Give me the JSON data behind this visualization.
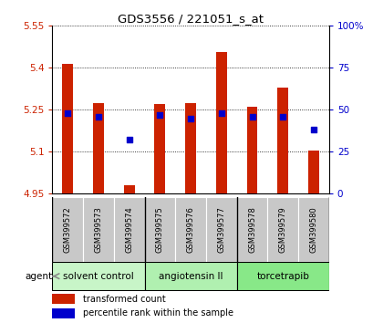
{
  "title": "GDS3556 / 221051_s_at",
  "samples": [
    "GSM399572",
    "GSM399573",
    "GSM399574",
    "GSM399575",
    "GSM399576",
    "GSM399577",
    "GSM399578",
    "GSM399579",
    "GSM399580"
  ],
  "bar_values": [
    5.415,
    5.275,
    4.98,
    5.27,
    5.275,
    5.455,
    5.26,
    5.33,
    5.105
  ],
  "bar_base": 4.95,
  "percentile_pct": [
    48,
    46,
    32,
    47,
    45,
    48,
    46,
    46,
    38
  ],
  "ylim_left": [
    4.95,
    5.55
  ],
  "ylim_right": [
    0,
    100
  ],
  "yticks_left": [
    4.95,
    5.1,
    5.25,
    5.4,
    5.55
  ],
  "yticks_right": [
    0,
    25,
    50,
    75,
    100
  ],
  "ytick_labels_left": [
    "4.95",
    "5.1",
    "5.25",
    "5.4",
    "5.55"
  ],
  "ytick_labels_right": [
    "0",
    "25",
    "50",
    "75",
    "100%"
  ],
  "groups": [
    {
      "label": "solvent control",
      "start": 0,
      "end": 3,
      "color": "#c8f5c8"
    },
    {
      "label": "angiotensin II",
      "start": 3,
      "end": 6,
      "color": "#b0f0b0"
    },
    {
      "label": "torcetrapib",
      "start": 6,
      "end": 9,
      "color": "#88e888"
    }
  ],
  "agent_label": "agent",
  "bar_color": "#cc2200",
  "dot_color": "#0000cc",
  "legend_bar_label": "transformed count",
  "legend_dot_label": "percentile rank within the sample",
  "background_plot": "#ffffff",
  "tick_color_left": "#cc2200",
  "tick_color_right": "#0000cc",
  "bar_width": 0.35,
  "dot_size": 18,
  "sample_area_color": "#c8c8c8",
  "sample_border_color": "#888888"
}
